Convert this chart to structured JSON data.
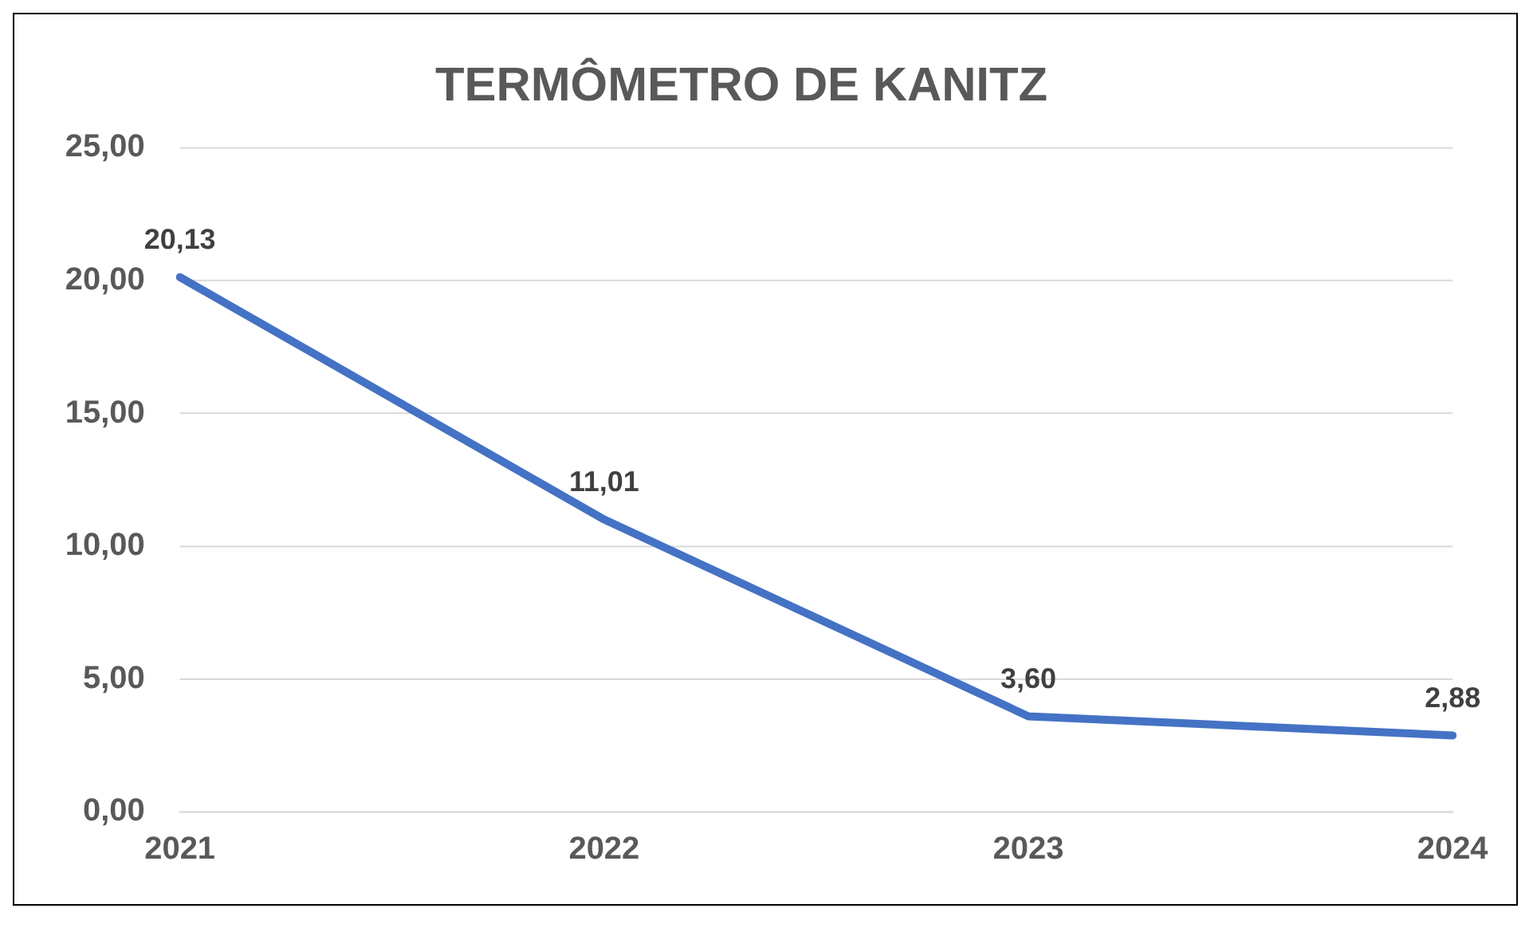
{
  "chart_data": {
    "type": "line",
    "title": "TERMÔMETRO DE KANITZ",
    "categories": [
      "2021",
      "2022",
      "2023",
      "2024"
    ],
    "series": [
      {
        "color": "#4472c4",
        "values": [
          20.13,
          11.01,
          3.6,
          2.88
        ],
        "value_labels": [
          "20,13",
          "11,01",
          "3,60",
          "2,88"
        ]
      }
    ],
    "ylim": [
      0,
      25
    ],
    "yticks": [
      {
        "value": 0,
        "label": "0,00"
      },
      {
        "value": 5,
        "label": "5,00"
      },
      {
        "value": 10,
        "label": "10,00"
      },
      {
        "value": 15,
        "label": "15,00"
      },
      {
        "value": 20,
        "label": "20,00"
      },
      {
        "value": 25,
        "label": "25,00"
      }
    ],
    "grid": "y",
    "legend": false,
    "marker": "none",
    "line_style": "solid"
  }
}
